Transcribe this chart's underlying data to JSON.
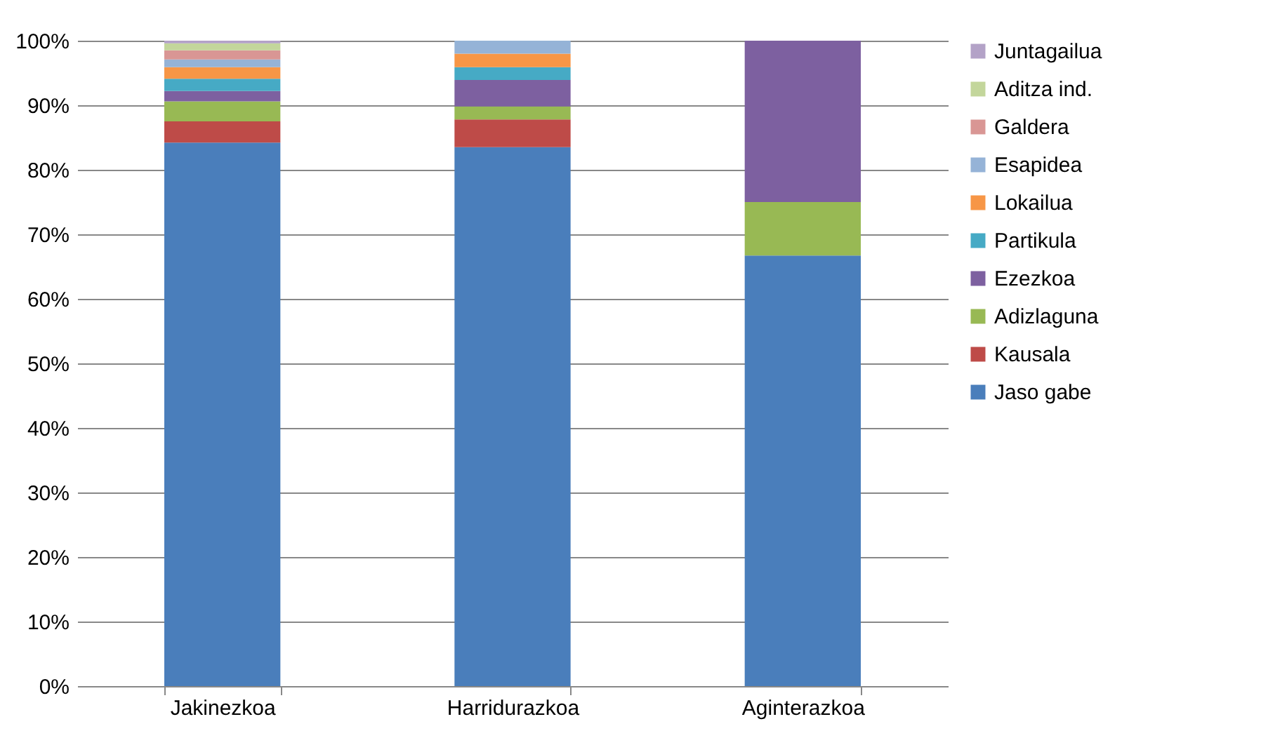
{
  "chart_data": {
    "type": "bar",
    "stacked": true,
    "categories": [
      "Jakinezkoa",
      "Harridurazkoa",
      "Aginterazkoa"
    ],
    "series": [
      {
        "name": "Jaso gabe",
        "color": "#4a7ebb",
        "values": [
          84.2,
          83.5,
          66.7
        ]
      },
      {
        "name": "Kausala",
        "color": "#be4b48",
        "values": [
          3.3,
          4.3,
          0
        ]
      },
      {
        "name": "Adizlaguna",
        "color": "#98b954",
        "values": [
          3.1,
          2.0,
          8.3
        ]
      },
      {
        "name": "Ezezkoa",
        "color": "#7d60a0",
        "values": [
          1.6,
          4.1,
          25.0
        ]
      },
      {
        "name": "Partikula",
        "color": "#46aac5",
        "values": [
          1.9,
          2.0,
          0
        ]
      },
      {
        "name": "Lokailua",
        "color": "#f79646",
        "values": [
          1.8,
          2.1,
          0
        ]
      },
      {
        "name": "Esapidea",
        "color": "#95b3d7",
        "values": [
          1.2,
          2.0,
          0
        ]
      },
      {
        "name": "Galdera",
        "color": "#d99694",
        "values": [
          1.4,
          0,
          0
        ]
      },
      {
        "name": "Aditza ind.",
        "color": "#c3d69b",
        "values": [
          1.1,
          0,
          0
        ]
      },
      {
        "name": "Juntagailua",
        "color": "#b3a2c7",
        "values": [
          0.4,
          0,
          0
        ]
      }
    ],
    "ylim": [
      0,
      100
    ],
    "yticks": [
      {
        "value": 0,
        "label": "0%"
      },
      {
        "value": 10,
        "label": "10%"
      },
      {
        "value": 20,
        "label": "20%"
      },
      {
        "value": 30,
        "label": "30%"
      },
      {
        "value": 40,
        "label": "40%"
      },
      {
        "value": 50,
        "label": "50%"
      },
      {
        "value": 60,
        "label": "60%"
      },
      {
        "value": 70,
        "label": "70%"
      },
      {
        "value": 80,
        "label": "80%"
      },
      {
        "value": 90,
        "label": "90%"
      },
      {
        "value": 100,
        "label": "100%"
      }
    ],
    "grid": "y",
    "legend": "right"
  }
}
